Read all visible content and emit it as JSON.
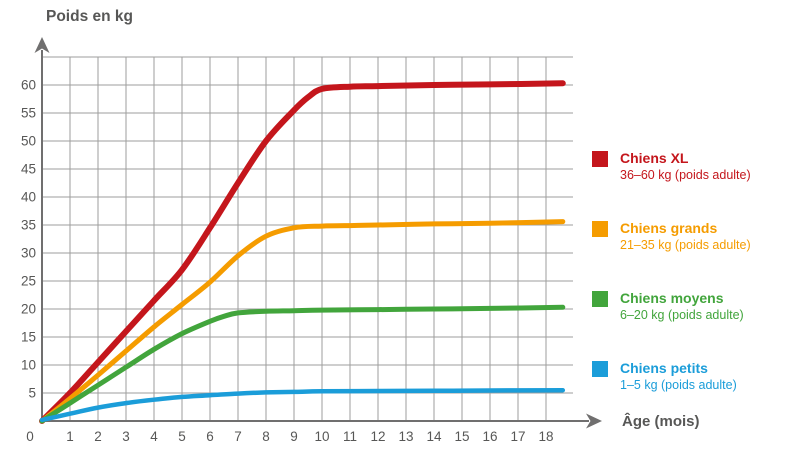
{
  "page": {
    "background": "#ffffff"
  },
  "chart_data": {
    "type": "line",
    "title": "Poids en kg",
    "xlabel": "Âge (mois)",
    "ylabel": "Poids en kg",
    "origin_label": "0",
    "x_ticks": [
      1,
      2,
      3,
      4,
      5,
      6,
      7,
      8,
      9,
      10,
      11,
      12,
      13,
      14,
      15,
      16,
      17,
      18
    ],
    "y_ticks": [
      5,
      10,
      15,
      20,
      25,
      30,
      35,
      40,
      45,
      50,
      55,
      60
    ],
    "xlim": [
      0,
      19
    ],
    "ylim": [
      0,
      65
    ],
    "grid": true,
    "legend_position": "right",
    "colors": {
      "grid": "#9d9d9c",
      "axis": "#706f6f",
      "text": "#575756"
    },
    "series": [
      {
        "name": "Chiens XL",
        "legend_title": "Chiens XL",
        "legend_subtitle": "36–60 kg (poids adulte)",
        "color": "#c4161c",
        "stroke_width": 6,
        "points": [
          [
            0,
            0
          ],
          [
            1,
            5
          ],
          [
            2,
            10.5
          ],
          [
            3,
            16
          ],
          [
            4,
            21.5
          ],
          [
            5,
            27
          ],
          [
            6,
            34.5
          ],
          [
            7,
            42.5
          ],
          [
            8,
            50
          ],
          [
            9,
            55.5
          ],
          [
            9.5,
            57.8
          ],
          [
            10,
            59.3
          ],
          [
            11,
            59.7
          ],
          [
            12,
            59.8
          ],
          [
            14,
            60
          ],
          [
            16,
            60.1
          ],
          [
            18.6,
            60.3
          ]
        ]
      },
      {
        "name": "Chiens grands",
        "legend_title": "Chiens grands",
        "legend_subtitle": "21–35 kg (poids adulte)",
        "color": "#f59c00",
        "stroke_width": 5,
        "points": [
          [
            0,
            0
          ],
          [
            1,
            4
          ],
          [
            2,
            8.2
          ],
          [
            3,
            12.5
          ],
          [
            4,
            16.8
          ],
          [
            5,
            20.8
          ],
          [
            6,
            24.8
          ],
          [
            7,
            29.5
          ],
          [
            8,
            33
          ],
          [
            9,
            34.5
          ],
          [
            10,
            34.8
          ],
          [
            11,
            34.9
          ],
          [
            12,
            35
          ],
          [
            14,
            35.2
          ],
          [
            16,
            35.3
          ],
          [
            18.6,
            35.6
          ]
        ]
      },
      {
        "name": "Chiens moyens",
        "legend_title": "Chiens moyens",
        "legend_subtitle": "6–20 kg (poids adulte)",
        "color": "#42a53c",
        "stroke_width": 5,
        "points": [
          [
            0,
            0
          ],
          [
            1,
            3.2
          ],
          [
            2,
            6.4
          ],
          [
            3,
            9.6
          ],
          [
            4,
            12.8
          ],
          [
            5,
            15.6
          ],
          [
            6,
            17.8
          ],
          [
            6.5,
            18.7
          ],
          [
            7,
            19.3
          ],
          [
            8,
            19.6
          ],
          [
            9,
            19.7
          ],
          [
            10,
            19.8
          ],
          [
            12,
            19.9
          ],
          [
            14,
            20
          ],
          [
            16,
            20.1
          ],
          [
            18.6,
            20.3
          ]
        ]
      },
      {
        "name": "Chiens petits",
        "legend_title": "Chiens petits",
        "legend_subtitle": "1–5 kg (poids adulte)",
        "color": "#1b9dd9",
        "stroke_width": 4.5,
        "points": [
          [
            0,
            0.2
          ],
          [
            1,
            1.3
          ],
          [
            2,
            2.4
          ],
          [
            3,
            3.2
          ],
          [
            4,
            3.8
          ],
          [
            5,
            4.3
          ],
          [
            6,
            4.6
          ],
          [
            7,
            4.9
          ],
          [
            8,
            5.1
          ],
          [
            9,
            5.2
          ],
          [
            10,
            5.3
          ],
          [
            12,
            5.35
          ],
          [
            14,
            5.4
          ],
          [
            16,
            5.45
          ],
          [
            18.6,
            5.5
          ]
        ]
      }
    ]
  }
}
